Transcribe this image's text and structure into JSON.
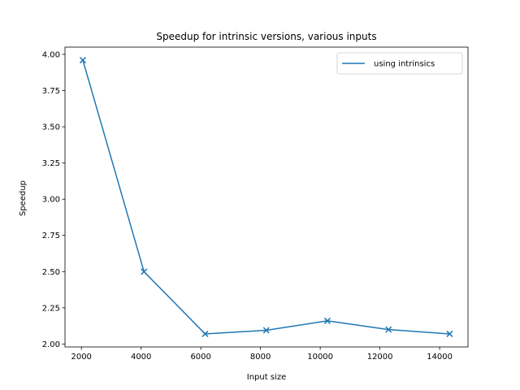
{
  "chart_data": {
    "type": "line",
    "title": "Speedup for intrinsic versions, various inputs",
    "xlabel": "Input size",
    "ylabel": "Speedup",
    "xlim": [
      1450,
      14950
    ],
    "ylim": [
      1.98,
      4.05
    ],
    "xticks": [
      2000,
      4000,
      6000,
      8000,
      10000,
      12000,
      14000
    ],
    "yticks": [
      2.0,
      2.25,
      2.5,
      2.75,
      3.0,
      3.25,
      3.5,
      3.75,
      4.0
    ],
    "xtick_labels": [
      "2000",
      "4000",
      "6000",
      "8000",
      "10000",
      "12000",
      "14000"
    ],
    "ytick_labels": [
      "2.00",
      "2.25",
      "2.50",
      "2.75",
      "3.00",
      "3.25",
      "3.50",
      "3.75",
      "4.00"
    ],
    "grid": false,
    "legend_position": "top-right",
    "series": [
      {
        "name": "using intrinsics",
        "color": "#1f77b4",
        "marker": "x",
        "x": [
          2048,
          4096,
          6144,
          8192,
          10240,
          12288,
          14336
        ],
        "y": [
          3.96,
          2.5,
          2.07,
          2.095,
          2.16,
          2.1,
          2.07
        ]
      }
    ]
  }
}
